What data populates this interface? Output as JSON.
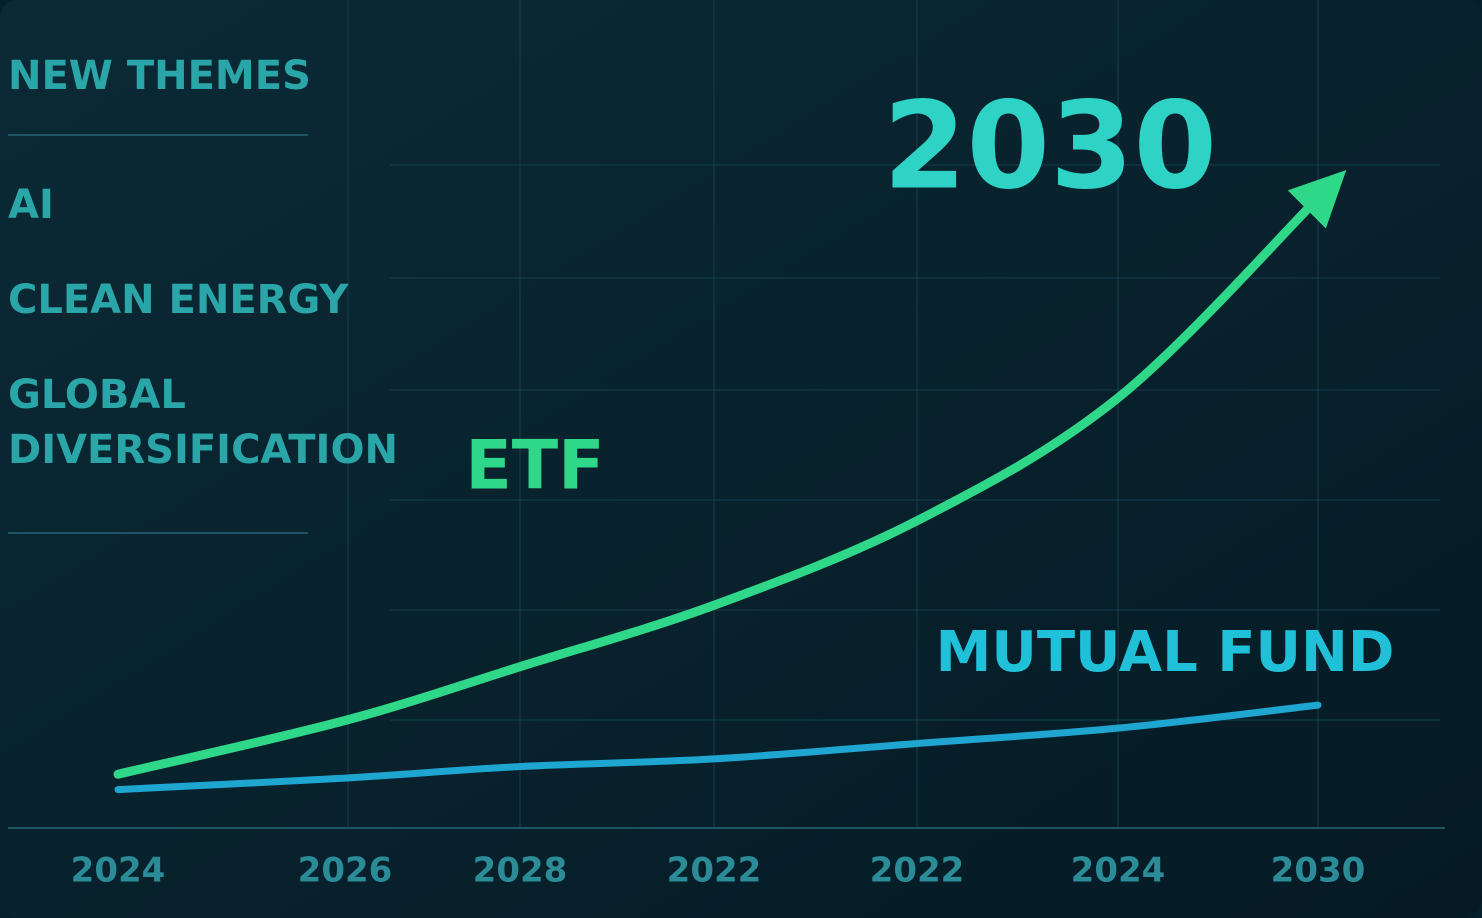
{
  "sidebar": {
    "title": "NEW THEMES",
    "items": [
      "AI",
      "CLEAN ENERGY",
      "GLOBAL",
      "DIVERSIFICATION"
    ]
  },
  "chart_data": {
    "type": "line",
    "headline": "2030",
    "categories": [
      "2024",
      "2026",
      "2028",
      "2022",
      "2022",
      "2024",
      "2030"
    ],
    "series": [
      {
        "name": "ETF",
        "color": "#2fd889",
        "values": [
          7,
          14,
          21,
          29,
          40,
          56,
          82
        ]
      },
      {
        "name": "MUTUAL FUND",
        "color": "#1fa6d0",
        "values": [
          5,
          6.5,
          8,
          9,
          11,
          13,
          16
        ]
      }
    ],
    "ylim": [
      0,
      100
    ]
  }
}
